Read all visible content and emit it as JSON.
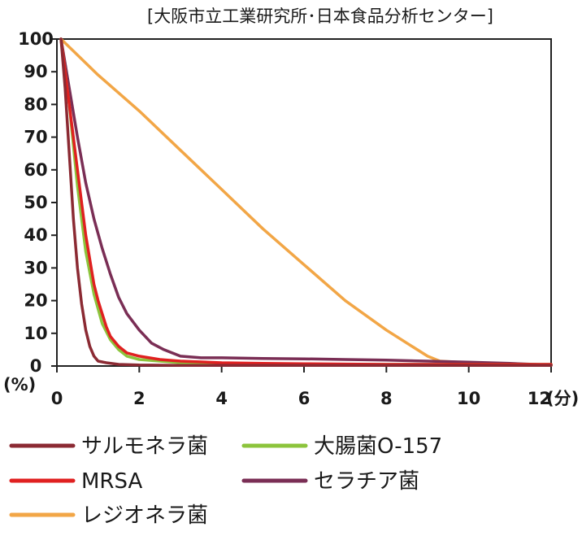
{
  "chart_data": {
    "type": "line",
    "source": "[大阪市立工業研究所･日本食品分析センター]",
    "ylabel": "(%)",
    "xunit": "(分)",
    "xlim": [
      0,
      12
    ],
    "ylim": [
      0,
      100
    ],
    "xticks": [
      "0",
      "2",
      "4",
      "6",
      "8",
      "10",
      "12"
    ],
    "yticks": [
      "0",
      "10",
      "20",
      "30",
      "40",
      "50",
      "60",
      "70",
      "80",
      "90",
      "100"
    ],
    "grid": false,
    "legend_position": "bottom",
    "series": [
      {
        "name": "サルモネラ菌",
        "color": "#8b2a33",
        "x": [
          0.1,
          0.2,
          0.3,
          0.4,
          0.5,
          0.6,
          0.7,
          0.8,
          0.9,
          1.0,
          1.2,
          1.5,
          2,
          3,
          4,
          5,
          6,
          7,
          8,
          9,
          10,
          11,
          12
        ],
        "y": [
          100,
          85,
          65,
          45,
          30,
          19,
          11,
          6,
          3,
          1.5,
          1,
          0.5,
          0.3,
          0.2,
          0.2,
          0.2,
          0.2,
          0.2,
          0.2,
          0.2,
          0.2,
          0.2,
          0.2
        ]
      },
      {
        "name": "大腸菌O-157",
        "color": "#8cc43c",
        "x": [
          0.1,
          0.3,
          0.5,
          0.7,
          0.9,
          1.1,
          1.3,
          1.5,
          1.7,
          2.0,
          2.5,
          3,
          4,
          5,
          6,
          7,
          8,
          9,
          10,
          11,
          12
        ],
        "y": [
          100,
          80,
          55,
          35,
          22,
          13,
          8,
          5,
          3,
          2,
          1.5,
          1,
          0.8,
          0.6,
          0.6,
          0.5,
          0.5,
          0.5,
          0.5,
          0.5,
          0.5
        ]
      },
      {
        "name": "MRSA",
        "color": "#e02020",
        "x": [
          0.1,
          0.3,
          0.5,
          0.7,
          0.9,
          1.0,
          1.1,
          1.2,
          1.3,
          1.5,
          1.7,
          2.0,
          2.5,
          3,
          4,
          5,
          6,
          7,
          8,
          9,
          10,
          11,
          12
        ],
        "y": [
          100,
          80,
          60,
          40,
          25,
          20,
          16,
          12,
          9,
          6,
          4,
          3,
          2,
          1.5,
          1,
          0.8,
          0.7,
          0.6,
          0.5,
          0.5,
          0.5,
          0.5,
          0.5
        ]
      },
      {
        "name": "セラチア菌",
        "color": "#7a2e55",
        "x": [
          0.1,
          0.3,
          0.5,
          0.7,
          0.9,
          1.1,
          1.3,
          1.5,
          1.7,
          2.0,
          2.3,
          2.6,
          3,
          3.5,
          4,
          5,
          6,
          7,
          8,
          9,
          10,
          11,
          12
        ],
        "y": [
          100,
          85,
          70,
          56,
          45,
          36,
          28,
          21,
          16,
          11,
          7,
          5,
          3,
          2.5,
          2.5,
          2.3,
          2.2,
          2,
          1.8,
          1.5,
          1.2,
          0.8,
          0.3
        ]
      },
      {
        "name": "レジオネラ菌",
        "color": "#f2a646",
        "x": [
          0.1,
          1,
          2,
          3,
          4,
          5,
          6,
          7,
          8,
          9,
          9.3,
          10,
          11,
          12
        ],
        "y": [
          100,
          89,
          78,
          66,
          54,
          42,
          31,
          20,
          11,
          3,
          1.5,
          1,
          0.5,
          0.2
        ]
      }
    ]
  }
}
